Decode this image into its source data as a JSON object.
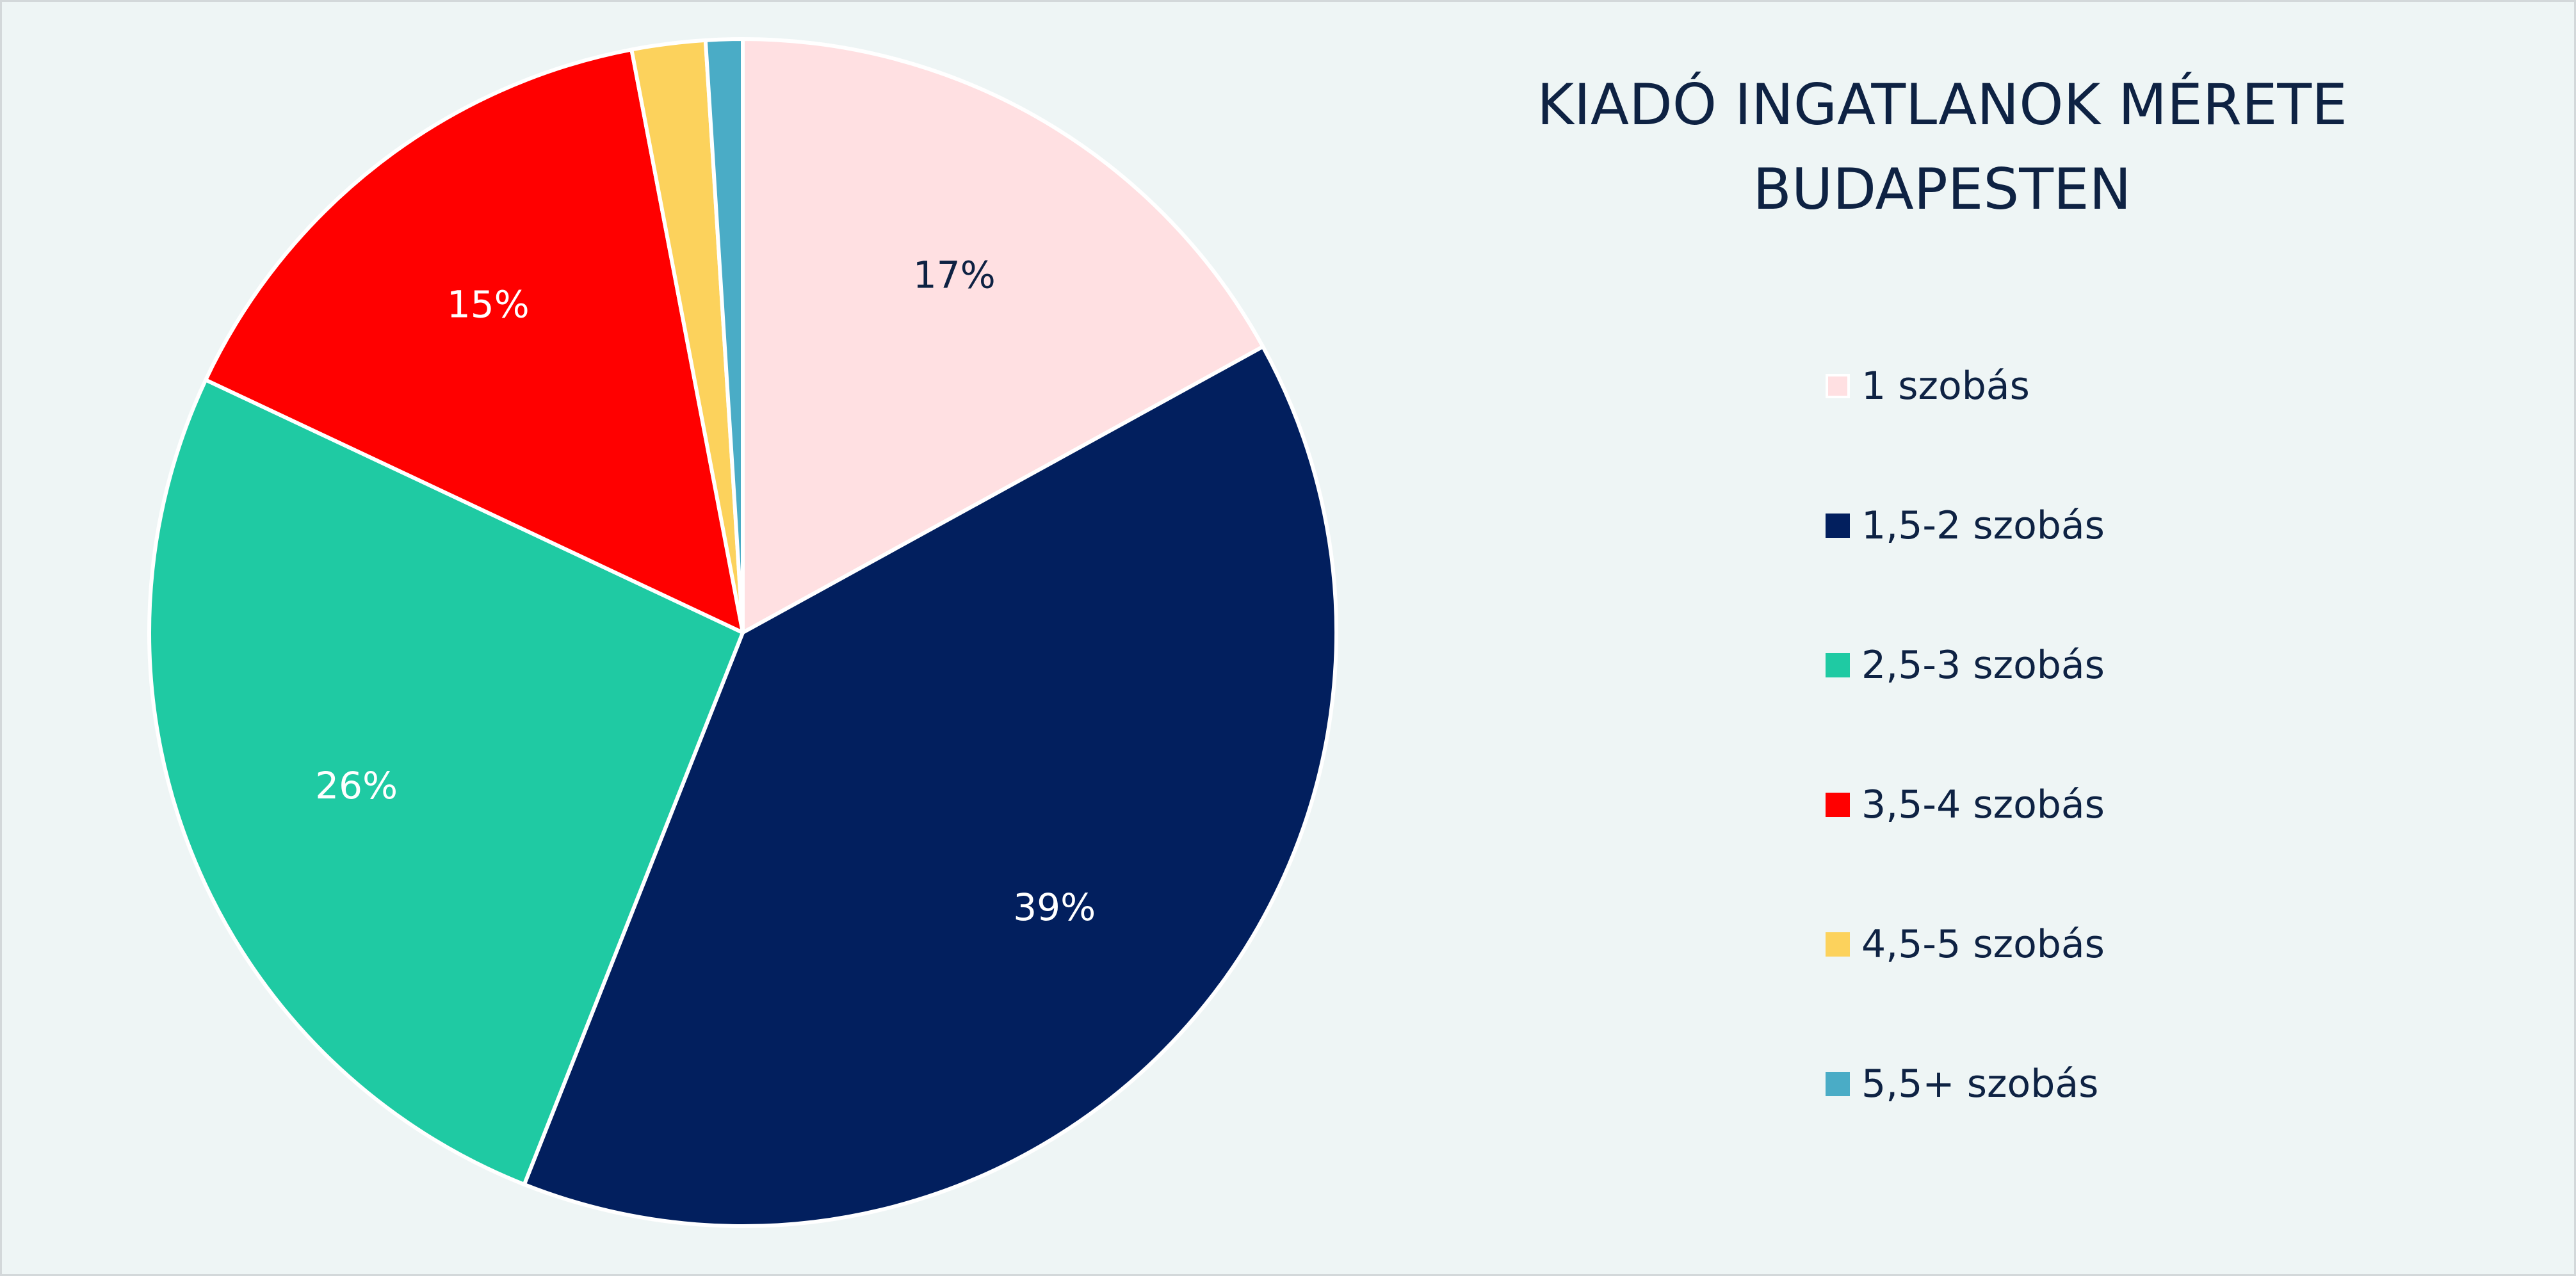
{
  "chart_data": {
    "type": "pie",
    "title": "KIADÓ INGATLANOK MÉRETE BUDAPESTEN",
    "title_lines": [
      "KIADÓ INGATLANOK MÉRETE",
      "BUDAPESTEN"
    ],
    "legend_position": "right",
    "categories": [
      "1 szobás",
      "1,5-2 szobás",
      "2,5-3 szobás",
      "3,5-4 szobás",
      "4,5-5 szobás",
      "5,5+ szobás"
    ],
    "values": [
      17,
      39,
      26,
      15,
      2,
      1
    ],
    "data_labels": [
      "17%",
      "39%",
      "26%",
      "15%",
      "",
      ""
    ],
    "colors": [
      "#ffe0e2",
      "#021f5e",
      "#1fcaa3",
      "#ff0000",
      "#fcd25c",
      "#4aacc6"
    ],
    "label_colors": [
      "#0e2243",
      "#ffffff",
      "#ffffff",
      "#ffffff",
      "#ffffff",
      "#ffffff"
    ]
  }
}
